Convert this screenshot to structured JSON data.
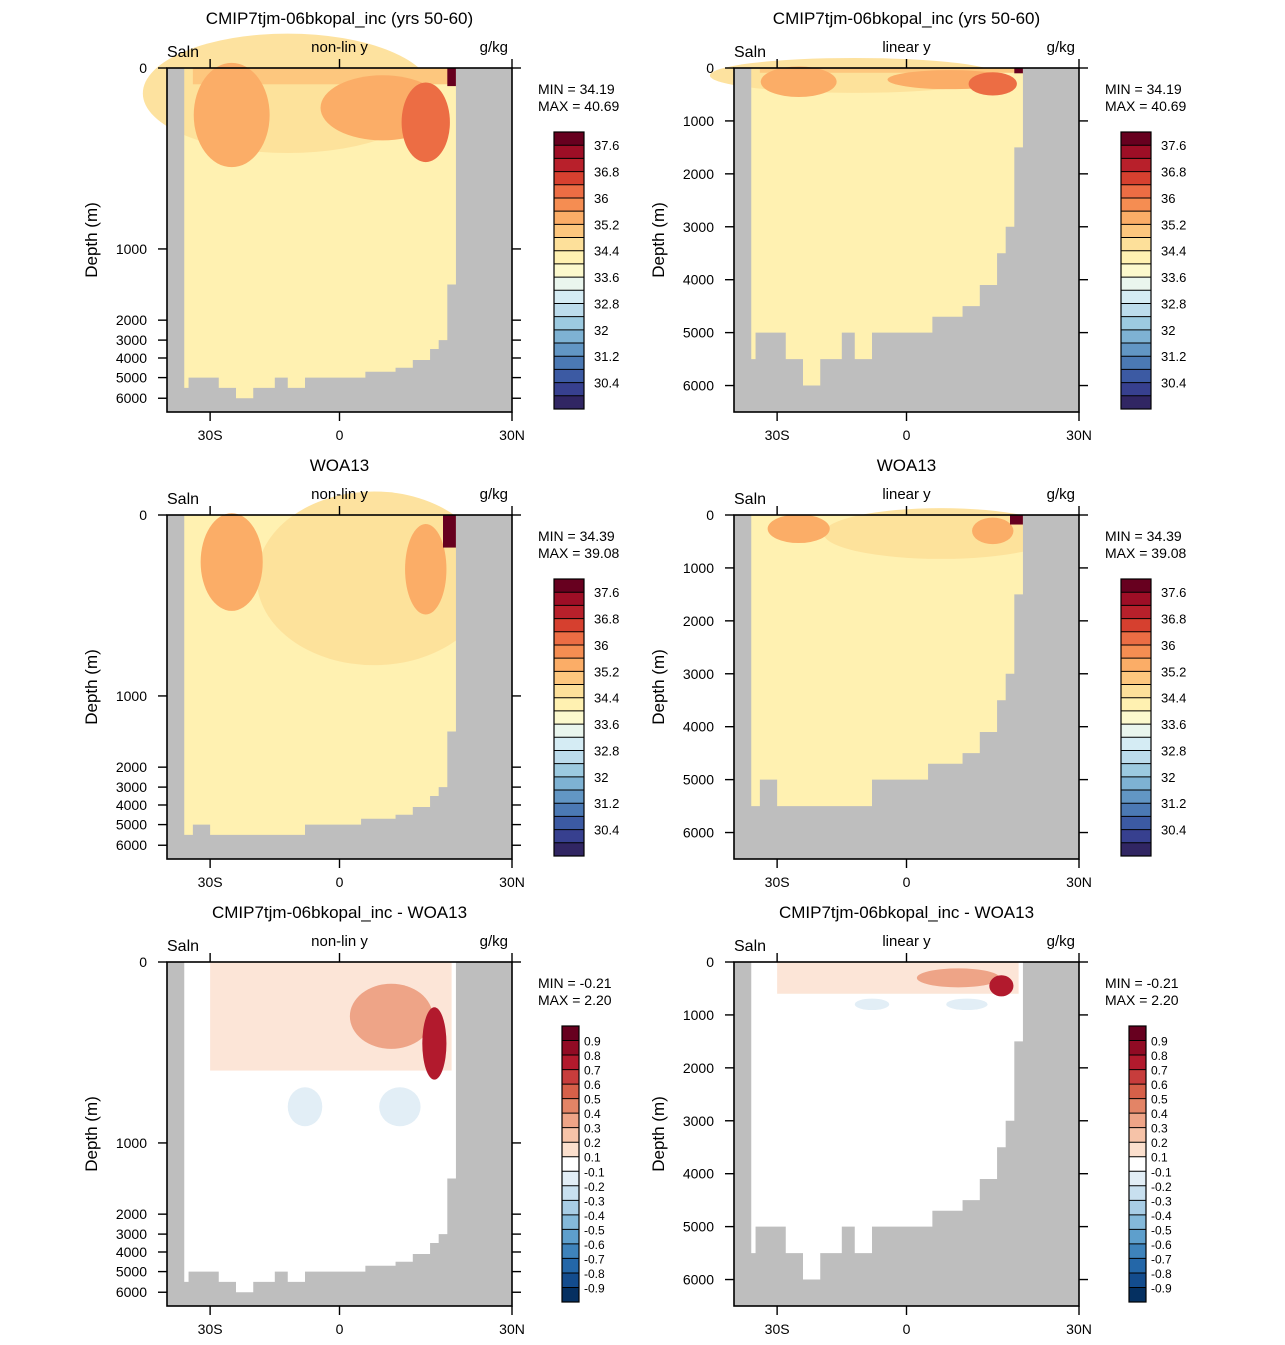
{
  "figure": {
    "panels": [
      {
        "title": "CMIP7tjm-06bkopal_inc (yrs 50-60)",
        "left_label": "Saln",
        "center_label": "non-lin y",
        "right_label": "g/kg",
        "ylabel": "Depth (m)",
        "min_text": "MIN =  34.19",
        "max_text": "MAX =  40.69",
        "scale": "nonlin",
        "colorbar": "salinity",
        "variant": "model"
      },
      {
        "title": "CMIP7tjm-06bkopal_inc (yrs 50-60)",
        "left_label": "Saln",
        "center_label": "linear y",
        "right_label": "g/kg",
        "ylabel": "Depth (m)",
        "min_text": "MIN =  34.19",
        "max_text": "MAX =  40.69",
        "scale": "linear",
        "colorbar": "salinity",
        "variant": "model"
      },
      {
        "title": "WOA13",
        "left_label": "Saln",
        "center_label": "non-lin y",
        "right_label": "g/kg",
        "ylabel": "Depth (m)",
        "min_text": "MIN =  34.39",
        "max_text": "MAX =  39.08",
        "scale": "nonlin",
        "colorbar": "salinity",
        "variant": "obs"
      },
      {
        "title": "WOA13",
        "left_label": "Saln",
        "center_label": "linear y",
        "right_label": "g/kg",
        "ylabel": "Depth (m)",
        "min_text": "MIN =  34.39",
        "max_text": "MAX =  39.08",
        "scale": "linear",
        "colorbar": "salinity",
        "variant": "obs"
      },
      {
        "title": "CMIP7tjm-06bkopal_inc - WOA13",
        "left_label": "Saln",
        "center_label": "non-lin y",
        "right_label": "g/kg",
        "ylabel": "Depth (m)",
        "min_text": "MIN =  -0.21",
        "max_text": "MAX =   2.20",
        "scale": "nonlin",
        "colorbar": "diff",
        "variant": "diff"
      },
      {
        "title": "CMIP7tjm-06bkopal_inc - WOA13",
        "left_label": "Saln",
        "center_label": "linear y",
        "right_label": "g/kg",
        "ylabel": "Depth (m)",
        "min_text": "MIN =  -0.21",
        "max_text": "MAX =   2.20",
        "scale": "linear",
        "colorbar": "diff",
        "variant": "diff"
      }
    ],
    "xticks": [
      "30S",
      "0",
      "30N"
    ],
    "yticks_nonlin": [
      "0",
      "1000",
      "2000",
      "3000",
      "4000",
      "5000",
      "6000"
    ],
    "yticks_linear": [
      "0",
      "1000",
      "2000",
      "3000",
      "4000",
      "5000",
      "6000"
    ],
    "colorbars": {
      "salinity": {
        "labels": [
          "37.6",
          "36.8",
          "36",
          "35.2",
          "34.4",
          "33.6",
          "32.8",
          "32",
          "31.2",
          "30.4"
        ],
        "colors": [
          "#67001f",
          "#9e0e26",
          "#b8202b",
          "#d6402f",
          "#ec6d44",
          "#f58d52",
          "#fbad67",
          "#fdc77e",
          "#fde09a",
          "#fff1b1",
          "#fcf9cd",
          "#eaf6ee",
          "#d5ecf4",
          "#bcdcec",
          "#9ccae0",
          "#7eb2d3",
          "#6296c4",
          "#4b79b4",
          "#3c5aa3",
          "#37408f",
          "#312663"
        ]
      },
      "diff": {
        "labels": [
          "0.9",
          "0.8",
          "0.7",
          "0.6",
          "0.5",
          "0.4",
          "0.3",
          "0.2",
          "0.1",
          "-0.1",
          "-0.2",
          "-0.3",
          "-0.4",
          "-0.5",
          "-0.6",
          "-0.7",
          "-0.8",
          "-0.9"
        ],
        "colors": [
          "#67001f",
          "#910b24",
          "#b21a2d",
          "#c73d3c",
          "#d66049",
          "#e38466",
          "#eea487",
          "#f6c3a8",
          "#fbdfcd",
          "#ffffff",
          "#e2eef6",
          "#c8e0ef",
          "#a8cde5",
          "#84b9da",
          "#5e9fcc",
          "#3e83bb",
          "#2467a8",
          "#134c8d",
          "#053061"
        ]
      }
    }
  },
  "chart_data": [
    {
      "type": "heatmap",
      "title": "CMIP7tjm-06bkopal_inc (yrs 50-60)",
      "variable": "Saln",
      "units": "g/kg",
      "y_scale": "non-lin y",
      "ylabel": "Depth (m)",
      "x_ticks": [
        "30S",
        "0",
        "30N"
      ],
      "y_ticks": [
        0,
        1000,
        2000,
        3000,
        4000,
        5000,
        6000
      ],
      "min": 34.19,
      "max": 40.69
    },
    {
      "type": "heatmap",
      "title": "CMIP7tjm-06bkopal_inc (yrs 50-60)",
      "variable": "Saln",
      "units": "g/kg",
      "y_scale": "linear y",
      "ylabel": "Depth (m)",
      "x_ticks": [
        "30S",
        "0",
        "30N"
      ],
      "y_ticks": [
        0,
        1000,
        2000,
        3000,
        4000,
        5000,
        6000
      ],
      "min": 34.19,
      "max": 40.69
    },
    {
      "type": "heatmap",
      "title": "WOA13",
      "variable": "Saln",
      "units": "g/kg",
      "y_scale": "non-lin y",
      "ylabel": "Depth (m)",
      "x_ticks": [
        "30S",
        "0",
        "30N"
      ],
      "y_ticks": [
        0,
        1000,
        2000,
        3000,
        4000,
        5000,
        6000
      ],
      "min": 34.39,
      "max": 39.08
    },
    {
      "type": "heatmap",
      "title": "WOA13",
      "variable": "Saln",
      "units": "g/kg",
      "y_scale": "linear y",
      "ylabel": "Depth (m)",
      "x_ticks": [
        "30S",
        "0",
        "30N"
      ],
      "y_ticks": [
        0,
        1000,
        2000,
        3000,
        4000,
        5000,
        6000
      ],
      "min": 34.39,
      "max": 39.08
    },
    {
      "type": "heatmap",
      "title": "CMIP7tjm-06bkopal_inc - WOA13",
      "variable": "Saln",
      "units": "g/kg",
      "y_scale": "non-lin y",
      "ylabel": "Depth (m)",
      "x_ticks": [
        "30S",
        "0",
        "30N"
      ],
      "y_ticks": [
        0,
        1000,
        2000,
        3000,
        4000,
        5000,
        6000
      ],
      "min": -0.21,
      "max": 2.2
    },
    {
      "type": "heatmap",
      "title": "CMIP7tjm-06bkopal_inc - WOA13",
      "variable": "Saln",
      "units": "g/kg",
      "y_scale": "linear y",
      "ylabel": "Depth (m)",
      "x_ticks": [
        "30S",
        "0",
        "30N"
      ],
      "y_ticks": [
        0,
        1000,
        2000,
        3000,
        4000,
        5000,
        6000
      ],
      "min": -0.21,
      "max": 2.2
    }
  ]
}
